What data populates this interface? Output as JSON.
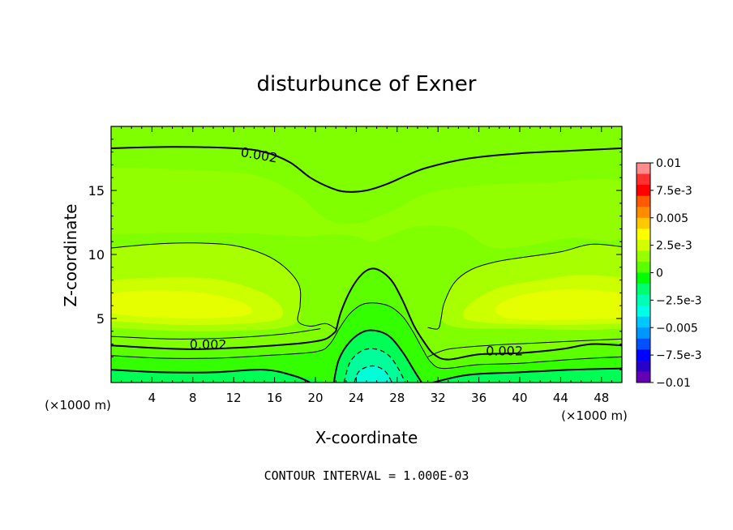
{
  "chart_data": {
    "type": "heatmap",
    "title": "disturbunce of Exner",
    "xlabel": "X-coordinate",
    "ylabel": "Z-coordinate",
    "x_unit": "(×1000 m)",
    "y_unit": "(×1000 m)",
    "xlim": [
      0,
      50
    ],
    "ylim": [
      0,
      20
    ],
    "x_ticks": [
      4,
      8,
      12,
      16,
      20,
      24,
      28,
      32,
      36,
      40,
      44,
      48
    ],
    "x_tick_labels": [
      "4",
      "8",
      "12",
      "16",
      "20",
      "24",
      "28",
      "32",
      "36",
      "40",
      "44",
      "48"
    ],
    "y_ticks": [
      5,
      10,
      15
    ],
    "y_tick_labels": [
      "5",
      "10",
      "15"
    ],
    "footnote": "CONTOUR INTERVAL = 1.000E-03",
    "contour_interval": 0.001,
    "colorbar": {
      "range": [
        -0.01,
        0.01
      ],
      "tick_labels": [
        "0.01",
        "7.5e-3",
        "0.005",
        "2.5e-3",
        "0",
        "−2.5e-3",
        "−0.005",
        "−7.5e-3",
        "−0.01"
      ],
      "tick_values": [
        0.01,
        0.0075,
        0.005,
        0.0025,
        0,
        -0.0025,
        -0.005,
        -0.0075,
        -0.01
      ],
      "colors": [
        "#ff8c8c",
        "#ff3030",
        "#ff0000",
        "#ff5a00",
        "#ff8c00",
        "#ffc800",
        "#ffff00",
        "#d2ff00",
        "#96ff00",
        "#5aff00",
        "#00ff00",
        "#00ff6e",
        "#00ffb4",
        "#00ffe6",
        "#00c8ff",
        "#0096ff",
        "#0050ff",
        "#0000ff",
        "#2800c8",
        "#6400b4"
      ]
    },
    "contour_labels": [
      {
        "text": "0.002",
        "x": 14.5,
        "z": 17.8,
        "angle": 10
      },
      {
        "text": "0.002",
        "x": 9.5,
        "z": 3.0,
        "angle": 0
      },
      {
        "text": "0.002",
        "x": 38.5,
        "z": 2.5,
        "angle": 0
      }
    ],
    "contours": [
      {
        "name": "upper 0.002",
        "style": "bold",
        "points": [
          [
            0,
            18.3
          ],
          [
            6,
            18.4
          ],
          [
            12,
            18.3
          ],
          [
            15,
            18.0
          ],
          [
            17.5,
            17.2
          ],
          [
            19.5,
            16.0
          ],
          [
            21.5,
            15.2
          ],
          [
            23,
            14.9
          ],
          [
            25,
            15.0
          ],
          [
            27,
            15.5
          ],
          [
            29,
            16.2
          ],
          [
            31,
            16.8
          ],
          [
            35,
            17.5
          ],
          [
            40,
            17.9
          ],
          [
            45,
            18.1
          ],
          [
            50,
            18.3
          ]
        ]
      },
      {
        "name": "left 0.0025 lobe",
        "style": "thin",
        "points": [
          [
            0,
            10.5
          ],
          [
            4,
            10.8
          ],
          [
            8,
            10.9
          ],
          [
            12,
            10.7
          ],
          [
            15,
            10.0
          ],
          [
            17,
            9.0
          ],
          [
            18.4,
            7.6
          ],
          [
            18.5,
            6.0
          ],
          [
            18.3,
            4.8
          ],
          [
            19.5,
            4.4
          ],
          [
            21,
            4.6
          ],
          [
            22,
            4.2
          ]
        ]
      },
      {
        "name": "right 0.0025 lobe",
        "style": "thin",
        "points": [
          [
            31,
            4.3
          ],
          [
            32,
            4.2
          ],
          [
            32.3,
            5.0
          ],
          [
            32.6,
            6.2
          ],
          [
            33.6,
            7.8
          ],
          [
            35.2,
            8.8
          ],
          [
            37.5,
            9.4
          ],
          [
            40.5,
            9.8
          ],
          [
            44,
            10.2
          ],
          [
            47,
            10.8
          ],
          [
            50,
            10.6
          ]
        ]
      },
      {
        "name": "left low 0.002",
        "style": "bold",
        "points": [
          [
            0,
            2.9
          ],
          [
            4,
            2.7
          ],
          [
            8,
            2.6
          ],
          [
            12,
            2.7
          ],
          [
            16,
            2.9
          ],
          [
            19,
            3.1
          ],
          [
            21,
            3.4
          ],
          [
            22,
            4.0
          ]
        ]
      },
      {
        "name": "mountain 0.002",
        "style": "bold",
        "points": [
          [
            22,
            4.0
          ],
          [
            22.5,
            5.5
          ],
          [
            23.5,
            7.3
          ],
          [
            24.6,
            8.5
          ],
          [
            25.6,
            8.9
          ],
          [
            26.6,
            8.6
          ],
          [
            27.6,
            7.8
          ],
          [
            28.6,
            6.3
          ],
          [
            29.6,
            4.5
          ],
          [
            30.6,
            3.2
          ],
          [
            31.6,
            2.2
          ],
          [
            33,
            1.8
          ],
          [
            36,
            2.2
          ],
          [
            40,
            2.3
          ],
          [
            44,
            2.6
          ],
          [
            47,
            3.0
          ],
          [
            50,
            2.9
          ]
        ]
      },
      {
        "name": "mountain 0.001",
        "style": "thin",
        "points": [
          [
            0,
            2.1
          ],
          [
            5,
            1.9
          ],
          [
            10,
            1.9
          ],
          [
            15,
            2.1
          ],
          [
            20,
            2.4
          ],
          [
            21.4,
            3.0
          ],
          [
            22.4,
            4.3
          ],
          [
            23.4,
            5.4
          ],
          [
            24.6,
            6.1
          ],
          [
            26,
            6.2
          ],
          [
            27.4,
            5.9
          ],
          [
            28.6,
            5.1
          ],
          [
            29.6,
            3.9
          ],
          [
            30.5,
            2.6
          ],
          [
            31.3,
            1.6
          ],
          [
            32.5,
            1.1
          ],
          [
            36,
            1.4
          ],
          [
            40,
            1.5
          ],
          [
            45,
            1.8
          ],
          [
            50,
            2.0
          ]
        ]
      },
      {
        "name": "left 0.0015",
        "style": "thin",
        "points": [
          [
            0,
            3.6
          ],
          [
            6,
            3.4
          ],
          [
            12,
            3.5
          ],
          [
            17,
            3.8
          ],
          [
            20.5,
            4.2
          ]
        ]
      },
      {
        "name": "right 0.0015",
        "style": "thin",
        "points": [
          [
            31,
            2.0
          ],
          [
            33,
            2.6
          ],
          [
            37,
            2.9
          ],
          [
            42,
            3.1
          ],
          [
            47,
            3.3
          ],
          [
            50,
            3.4
          ]
        ]
      },
      {
        "name": "0.000 zero line",
        "style": "bold",
        "points": [
          [
            0,
            1.0
          ],
          [
            5,
            0.8
          ],
          [
            10,
            0.8
          ],
          [
            15,
            1.0
          ],
          [
            18,
            0.5
          ],
          [
            19.5,
            0.0
          ]
        ]
      },
      {
        "name": "mountain 0.000",
        "style": "bold",
        "points": [
          [
            21.8,
            0.0
          ],
          [
            22.3,
            1.8
          ],
          [
            23.4,
            3.2
          ],
          [
            24.8,
            4.0
          ],
          [
            26.2,
            4.0
          ],
          [
            27.4,
            3.5
          ],
          [
            28.6,
            2.3
          ],
          [
            29.6,
            1.0
          ],
          [
            30.4,
            0.0
          ]
        ]
      },
      {
        "name": "right 0.000",
        "style": "bold",
        "points": [
          [
            31.5,
            0.0
          ],
          [
            35,
            0.6
          ],
          [
            40,
            0.8
          ],
          [
            45,
            1.0
          ],
          [
            50,
            1.1
          ]
        ]
      },
      {
        "name": "-0.001",
        "style": "dashed",
        "points": [
          [
            22.8,
            0.0
          ],
          [
            23.4,
            1.6
          ],
          [
            24.6,
            2.5
          ],
          [
            26,
            2.6
          ],
          [
            27.2,
            2.1
          ],
          [
            28.1,
            1.1
          ],
          [
            28.8,
            0.0
          ]
        ]
      },
      {
        "name": "-0.002",
        "style": "dashed",
        "points": [
          [
            23.8,
            0.0
          ],
          [
            24.3,
            0.9
          ],
          [
            25.6,
            1.3
          ],
          [
            26.8,
            0.9
          ],
          [
            27.5,
            0.0
          ]
        ]
      }
    ]
  }
}
